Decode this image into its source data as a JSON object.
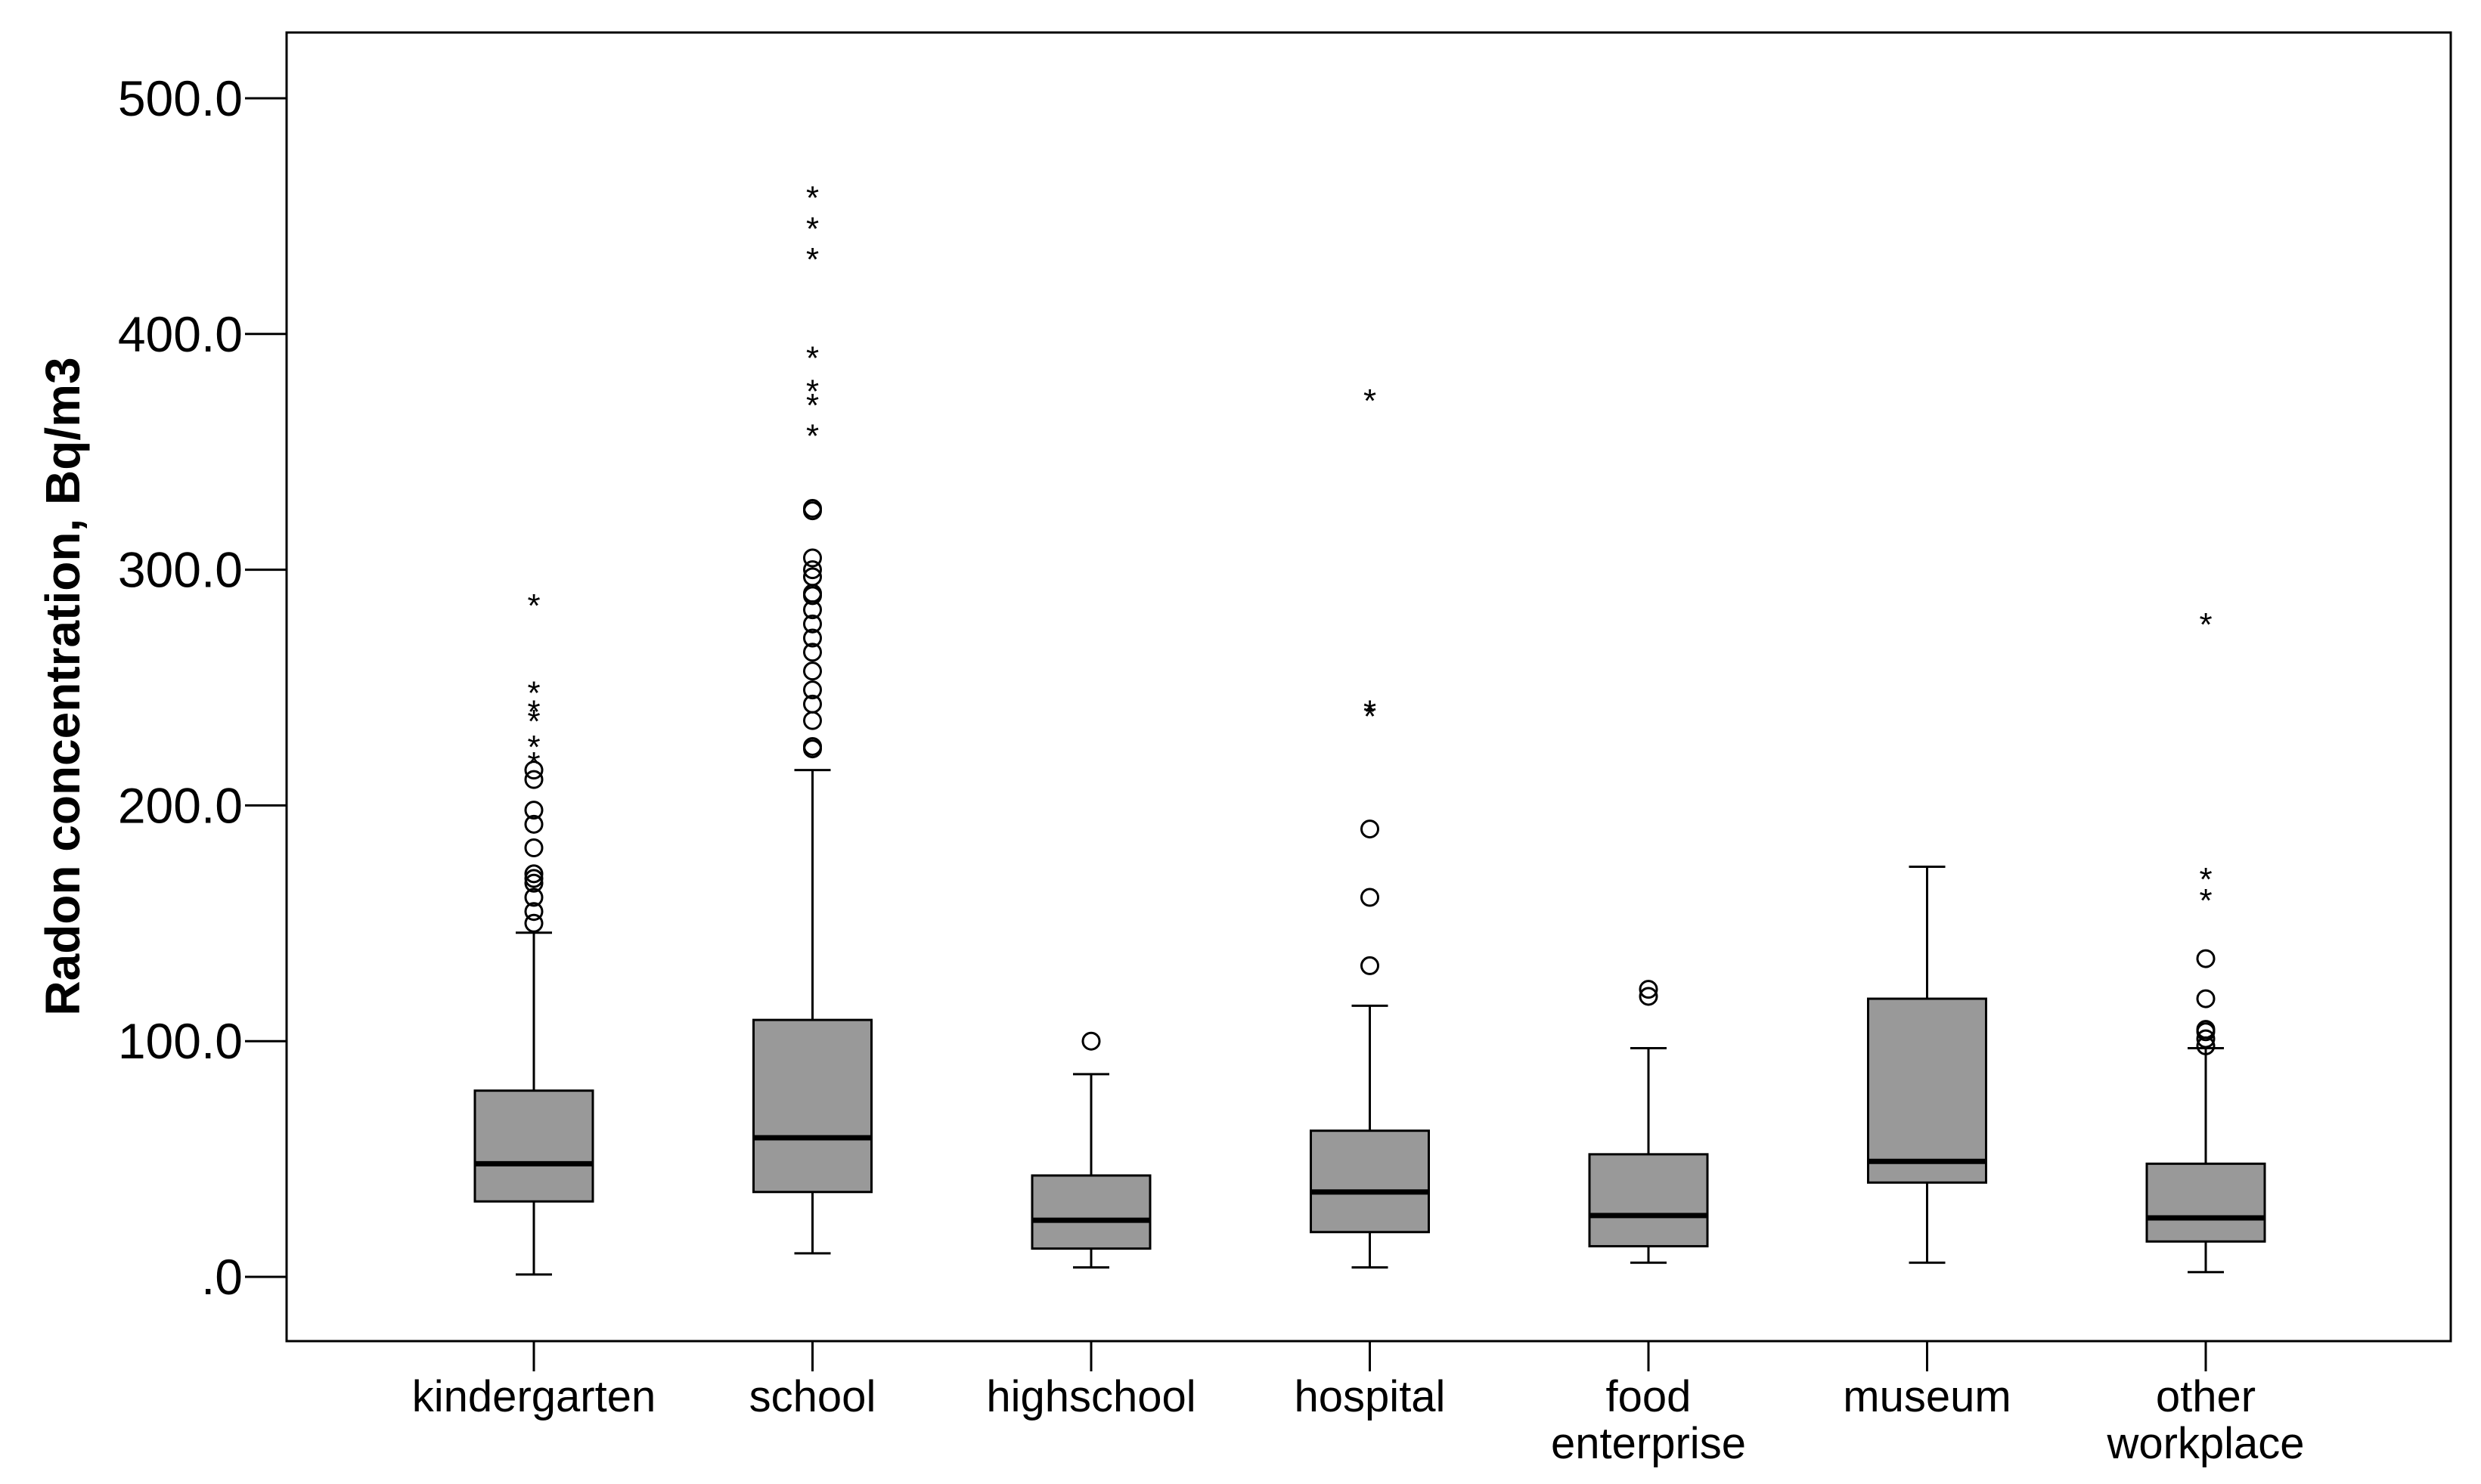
{
  "chart_data": {
    "type": "boxplot",
    "title": "",
    "xlabel": "",
    "ylabel": "Radon concentration, Bq/m3",
    "ylim": [
      -28,
      528
    ],
    "yticks": [
      0,
      100,
      200,
      300,
      400,
      500
    ],
    "ytick_labels": [
      ".0",
      "100.0",
      "200.0",
      "300.0",
      "400.0",
      "500.0"
    ],
    "box_color": "#999999",
    "grid": false,
    "categories": [
      {
        "label": [
          "kindergarten"
        ],
        "min": 1,
        "q1": 32,
        "median": 48,
        "q3": 79,
        "max": 146,
        "outliers": [
          150,
          155,
          161,
          167,
          169,
          171,
          182,
          192,
          198,
          211,
          215
        ],
        "extremes": [
          220,
          227,
          238,
          242,
          250,
          287
        ]
      },
      {
        "label": [
          "school"
        ],
        "min": 10,
        "q1": 36,
        "median": 59,
        "q3": 109,
        "max": 215,
        "outliers": [
          224,
          225,
          236,
          243,
          249,
          257,
          265,
          271,
          277,
          283,
          289,
          290,
          297,
          300,
          305,
          325,
          326
        ],
        "extremes": [
          359,
          372,
          378,
          392,
          434,
          447,
          460
        ]
      },
      {
        "label": [
          "highschool"
        ],
        "min": 4,
        "q1": 12,
        "median": 24,
        "q3": 43,
        "max": 86,
        "outliers": [
          100
        ],
        "extremes": []
      },
      {
        "label": [
          "hospital"
        ],
        "min": 4,
        "q1": 19,
        "median": 36,
        "q3": 62,
        "max": 115,
        "outliers": [
          132,
          161,
          190
        ],
        "extremes": [
          240,
          242,
          374
        ]
      },
      {
        "label": [
          "food",
          "enterprise"
        ],
        "min": 6,
        "q1": 13,
        "median": 26,
        "q3": 52,
        "max": 97,
        "outliers": [
          119,
          122
        ],
        "extremes": []
      },
      {
        "label": [
          "museum"
        ],
        "min": 6,
        "q1": 40,
        "median": 49,
        "q3": 118,
        "max": 174,
        "outliers": [],
        "extremes": []
      },
      {
        "label": [
          "other",
          "workplace"
        ],
        "min": 2,
        "q1": 15,
        "median": 25,
        "q3": 48,
        "max": 97,
        "outliers": [
          98,
          101,
          104,
          105,
          118,
          135
        ],
        "extremes": [
          162,
          171,
          279
        ]
      }
    ]
  }
}
